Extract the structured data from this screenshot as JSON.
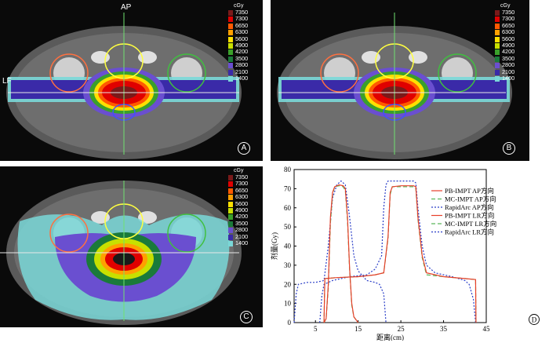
{
  "panels": {
    "A": {
      "letter": "A",
      "ap_label": "AP",
      "lr_label": "LF",
      "unit": "cGy",
      "type": "narrow"
    },
    "B": {
      "letter": "B",
      "unit": "cGy",
      "type": "narrow"
    },
    "C": {
      "letter": "C",
      "unit": "cGy",
      "type": "wide"
    }
  },
  "colorbar": [
    {
      "value": "7350",
      "color": "#7a1a1a"
    },
    {
      "value": "7300",
      "color": "#e00000"
    },
    {
      "value": "6650",
      "color": "#ff5a00"
    },
    {
      "value": "6300",
      "color": "#ffa000"
    },
    {
      "value": "5600",
      "color": "#ffe000"
    },
    {
      "value": "4900",
      "color": "#c8e000"
    },
    {
      "value": "4200",
      "color": "#3aa02a"
    },
    {
      "value": "3500",
      "color": "#1a7a3a"
    },
    {
      "value": "2800",
      "color": "#6a4fd0"
    },
    {
      "value": "2100",
      "color": "#3a2aa8"
    },
    {
      "value": "1400",
      "color": "#7ad8d8"
    }
  ],
  "chart_data": {
    "type": "line",
    "panel_letter": "D",
    "xlabel": "距离(cm)",
    "ylabel": "剂量(Gy)",
    "xlim": [
      0,
      45
    ],
    "ylim": [
      0,
      80
    ],
    "xticks": [
      5,
      15,
      25,
      35,
      45
    ],
    "yticks": [
      0,
      10,
      20,
      30,
      40,
      50,
      60,
      70,
      80
    ],
    "legend_position": "right",
    "series": [
      {
        "name": "PB-IMPT AP方向",
        "color": "#e8402a",
        "dash": "solid",
        "points": [
          [
            7,
            0
          ],
          [
            7.5,
            2
          ],
          [
            8,
            20
          ],
          [
            8.5,
            55
          ],
          [
            9,
            68
          ],
          [
            9.5,
            71
          ],
          [
            10.5,
            72
          ],
          [
            11.5,
            71.5
          ],
          [
            12,
            70
          ],
          [
            12.5,
            55
          ],
          [
            13,
            28
          ],
          [
            13.5,
            10
          ],
          [
            14,
            3
          ],
          [
            15,
            0
          ]
        ]
      },
      {
        "name": "MC-IMPT AP方向",
        "color": "#5cb85c",
        "dash": "dash",
        "points": [
          [
            7,
            0
          ],
          [
            7.5,
            2
          ],
          [
            8,
            18
          ],
          [
            8.5,
            52
          ],
          [
            9,
            67
          ],
          [
            9.5,
            71
          ],
          [
            10.5,
            71.5
          ],
          [
            11.5,
            71
          ],
          [
            12,
            69
          ],
          [
            12.5,
            53
          ],
          [
            13,
            27
          ],
          [
            13.5,
            9
          ],
          [
            14,
            3
          ],
          [
            15,
            0
          ]
        ]
      },
      {
        "name": "RapidArc AP方向",
        "color": "#2a3ec8",
        "dash": "dot",
        "points": [
          [
            0,
            0
          ],
          [
            0.5,
            15
          ],
          [
            1,
            20
          ],
          [
            3,
            21
          ],
          [
            5,
            21
          ],
          [
            7,
            22
          ],
          [
            8,
            40
          ],
          [
            9,
            65
          ],
          [
            10,
            72
          ],
          [
            11,
            74
          ],
          [
            12,
            72
          ],
          [
            13,
            55
          ],
          [
            14,
            35
          ],
          [
            15,
            27
          ],
          [
            17,
            22
          ],
          [
            19,
            21
          ],
          [
            20,
            20
          ],
          [
            21,
            15
          ],
          [
            21.5,
            0
          ]
        ]
      },
      {
        "name": "PB-IMPT LR方向",
        "color": "#e8402a",
        "dash": "solid",
        "points": [
          [
            7,
            0
          ],
          [
            7.2,
            23
          ],
          [
            10,
            23.5
          ],
          [
            15,
            24
          ],
          [
            19,
            25
          ],
          [
            21,
            26
          ],
          [
            22,
            45
          ],
          [
            22.5,
            68
          ],
          [
            23,
            71
          ],
          [
            25,
            71.5
          ],
          [
            28,
            71.5
          ],
          [
            28.5,
            71
          ],
          [
            29,
            55
          ],
          [
            30,
            35
          ],
          [
            31,
            26
          ],
          [
            35,
            24
          ],
          [
            40,
            23
          ],
          [
            42.5,
            22.5
          ],
          [
            42.6,
            0
          ]
        ]
      },
      {
        "name": "MC-IMPT LR方向",
        "color": "#5cb85c",
        "dash": "dash",
        "points": [
          [
            7,
            0
          ],
          [
            7.2,
            23
          ],
          [
            10,
            23.5
          ],
          [
            15,
            24
          ],
          [
            19,
            25
          ],
          [
            21,
            26
          ],
          [
            22,
            44
          ],
          [
            22.5,
            67
          ],
          [
            23,
            71
          ],
          [
            25,
            71
          ],
          [
            28,
            71
          ],
          [
            28.5,
            70
          ],
          [
            29,
            54
          ],
          [
            30,
            34
          ],
          [
            31,
            25
          ],
          [
            35,
            24
          ],
          [
            40,
            23
          ],
          [
            42.5,
            22.5
          ],
          [
            42.6,
            0
          ]
        ]
      },
      {
        "name": "RapidArc LR方向",
        "color": "#2a3ec8",
        "dash": "dot",
        "points": [
          [
            6,
            0
          ],
          [
            6.5,
            14
          ],
          [
            7,
            20
          ],
          [
            9,
            22
          ],
          [
            13,
            24
          ],
          [
            17,
            25
          ],
          [
            19,
            28
          ],
          [
            20.5,
            35
          ],
          [
            21,
            60
          ],
          [
            21.5,
            72
          ],
          [
            22,
            74
          ],
          [
            25,
            74
          ],
          [
            28,
            74
          ],
          [
            28.5,
            73
          ],
          [
            29,
            60
          ],
          [
            30,
            40
          ],
          [
            31,
            30
          ],
          [
            33,
            26
          ],
          [
            37,
            24
          ],
          [
            40,
            22
          ],
          [
            41,
            20
          ],
          [
            42,
            12
          ],
          [
            42.5,
            0
          ]
        ]
      }
    ]
  }
}
